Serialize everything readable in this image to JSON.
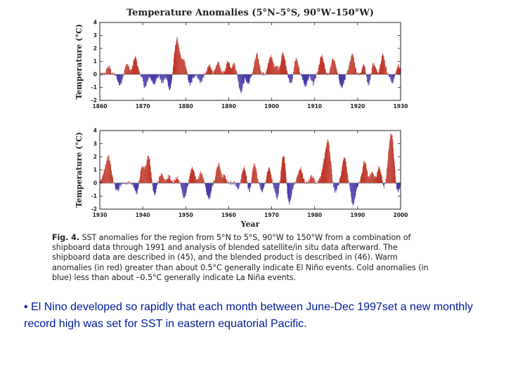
{
  "colors": {
    "warm": "#c0392b",
    "cold": "#4b3ca8"
  },
  "chart_data": [
    {
      "type": "bar",
      "title": "Temperature Anomalies (5°N–5°S, 90°W–150°W)",
      "xlabel": "",
      "ylabel": "Temperature (°C)",
      "xlim": [
        1860,
        1930
      ],
      "ylim": [
        -2,
        4
      ],
      "x_ticks": [
        "1860",
        "1870",
        "1880",
        "1890",
        "1900",
        "1910",
        "1920",
        "1930"
      ],
      "y_ticks": [
        "4",
        "3",
        "2",
        "1",
        "0",
        "-1",
        "-2"
      ],
      "grid": false,
      "events": [
        [
          1862.0,
          0.6
        ],
        [
          1864.6,
          -0.8
        ],
        [
          1866.3,
          0.8
        ],
        [
          1868.2,
          1.3
        ],
        [
          1870.5,
          -1.0
        ],
        [
          1872.5,
          -0.8
        ],
        [
          1874.5,
          -0.6
        ],
        [
          1876.3,
          -1.2
        ],
        [
          1877.9,
          2.7
        ],
        [
          1879.5,
          1.0
        ],
        [
          1881.0,
          -0.8
        ],
        [
          1883.4,
          -0.6
        ],
        [
          1885.5,
          0.7
        ],
        [
          1887.5,
          0.9
        ],
        [
          1889.8,
          1.0
        ],
        [
          1891.2,
          0.8
        ],
        [
          1892.8,
          -1.3
        ],
        [
          1894.5,
          -0.7
        ],
        [
          1896.5,
          1.5
        ],
        [
          1899.7,
          1.4
        ],
        [
          1901.0,
          0.6
        ],
        [
          1902.6,
          1.6
        ],
        [
          1904.5,
          -0.8
        ],
        [
          1905.6,
          1.2
        ],
        [
          1907.8,
          -0.9
        ],
        [
          1909.6,
          -0.7
        ],
        [
          1911.6,
          1.4
        ],
        [
          1914.3,
          1.2
        ],
        [
          1916.3,
          -1.0
        ],
        [
          1918.7,
          1.6
        ],
        [
          1921.5,
          0.8
        ],
        [
          1922.5,
          -0.9
        ],
        [
          1923.6,
          0.9
        ],
        [
          1925.8,
          1.5
        ],
        [
          1928.0,
          -0.6
        ],
        [
          1929.5,
          0.7
        ]
      ]
    },
    {
      "type": "bar",
      "title": "",
      "xlabel": "Year",
      "ylabel": "Temperature (°C)",
      "xlim": [
        1930,
        2000
      ],
      "ylim": [
        -2,
        4
      ],
      "x_ticks": [
        "1930",
        "1940",
        "1950",
        "1960",
        "1970",
        "1980",
        "1990",
        "2000"
      ],
      "y_ticks": [
        "4",
        "3",
        "2",
        "1",
        "0",
        "-1",
        "-2"
      ],
      "grid": false,
      "events": [
        [
          1931.0,
          0.7
        ],
        [
          1932.0,
          1.9
        ],
        [
          1934.0,
          -0.6
        ],
        [
          1938.5,
          -0.8
        ],
        [
          1939.8,
          1.2
        ],
        [
          1941.3,
          2.0
        ],
        [
          1942.6,
          -1.0
        ],
        [
          1944.2,
          0.7
        ],
        [
          1946.0,
          0.5
        ],
        [
          1948.0,
          0.4
        ],
        [
          1949.6,
          -1.1
        ],
        [
          1951.5,
          1.1
        ],
        [
          1953.5,
          0.8
        ],
        [
          1955.3,
          -1.2
        ],
        [
          1957.6,
          1.4
        ],
        [
          1959.0,
          0.5
        ],
        [
          1962.2,
          -0.4
        ],
        [
          1963.5,
          1.2
        ],
        [
          1964.9,
          -0.9
        ],
        [
          1965.8,
          1.6
        ],
        [
          1967.8,
          -0.6
        ],
        [
          1969.3,
          1.1
        ],
        [
          1971.2,
          -1.2
        ],
        [
          1972.8,
          2.2
        ],
        [
          1973.9,
          -1.8
        ],
        [
          1976.6,
          1.2
        ],
        [
          1979.3,
          0.5
        ],
        [
          1981.8,
          0.6
        ],
        [
          1983.0,
          3.2
        ],
        [
          1984.6,
          -0.8
        ],
        [
          1986.9,
          1.9
        ],
        [
          1988.9,
          -1.6
        ],
        [
          1991.6,
          1.6
        ],
        [
          1993.3,
          0.8
        ],
        [
          1995.0,
          1.2
        ],
        [
          1996.2,
          -0.6
        ],
        [
          1997.8,
          3.8
        ],
        [
          1999.0,
          -1.2
        ]
      ]
    }
  ],
  "caption": {
    "label": "Fig. 4.",
    "lines": [
      "SST anomalies for the region from 5°N to 5°S, 90°W to 150°W from a combination of",
      "shipboard data through 1991 and analysis of blended satellite/in situ data afterward. The shipboard",
      "data are described in (45), and the blended product is described in (46). Warm anomalies (in red)",
      "greater than about 0.5°C generally indicate El Niño events. Cold anomalies (in blue) less than about",
      "–0.5°C generally indicate La Niña events."
    ]
  },
  "bullet": "• El Nino developed so rapidly that each month between June-Dec 1997set  a new monthly record high was set for SST in eastern equatorial Pacific."
}
